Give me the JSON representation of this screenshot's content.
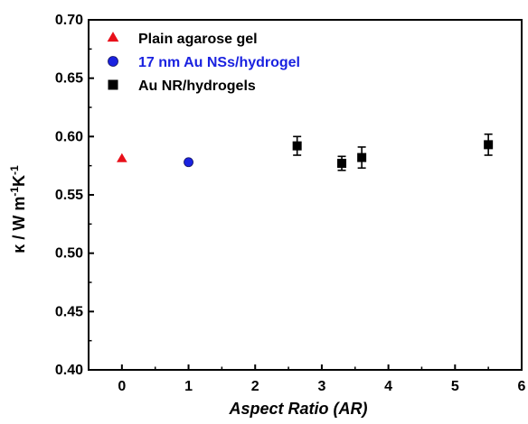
{
  "chart_data": {
    "type": "scatter",
    "title": "",
    "xlabel": "Aspect Ratio (AR)",
    "ylabel": {
      "main": "κ / W m",
      "sup1": "-1",
      "mid": "K",
      "sup2": "-1"
    },
    "xlim": [
      -0.5,
      6
    ],
    "ylim": [
      0.4,
      0.7
    ],
    "xticks": [
      "0",
      "1",
      "2",
      "3",
      "4",
      "5",
      "6"
    ],
    "yticks": [
      "0.40",
      "0.45",
      "0.50",
      "0.55",
      "0.60",
      "0.65",
      "0.70"
    ],
    "grid": false,
    "legend_position": "top-left",
    "series": [
      {
        "name": "Plain agarose gel",
        "marker": "triangle",
        "color": "#e8101a",
        "label_color": "#000000",
        "points": [
          {
            "x": 0,
            "y": 0.581,
            "err": 0.0015
          }
        ]
      },
      {
        "name": "17 nm Au NSs/hydrogel",
        "marker": "circle",
        "color": "#1a22e0",
        "label_color": "#1a22e0",
        "points": [
          {
            "x": 1,
            "y": 0.578,
            "err": 0.002
          }
        ]
      },
      {
        "name": "Au NR/hydrogels",
        "marker": "square",
        "color": "#000000",
        "label_color": "#000000",
        "points": [
          {
            "x": 2.63,
            "y": 0.592,
            "err": 0.008
          },
          {
            "x": 3.3,
            "y": 0.577,
            "err": 0.006
          },
          {
            "x": 3.6,
            "y": 0.582,
            "err": 0.009
          },
          {
            "x": 5.5,
            "y": 0.593,
            "err": 0.009
          }
        ]
      }
    ]
  }
}
